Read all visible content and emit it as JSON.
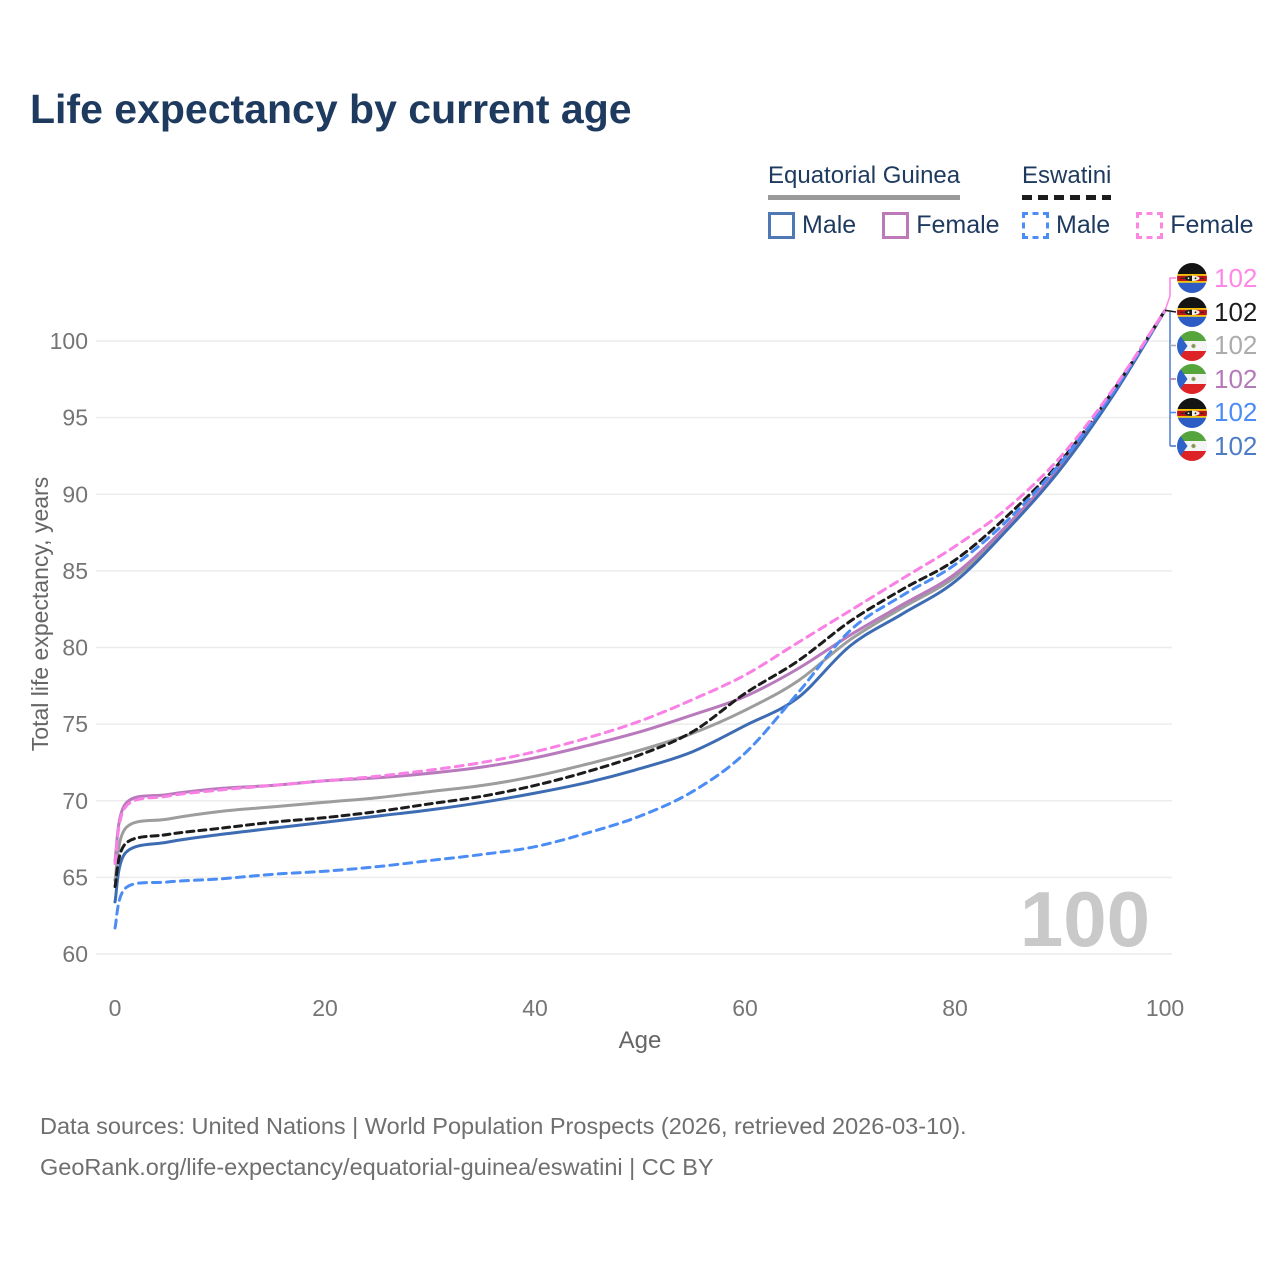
{
  "title": "Life expectancy by current age",
  "legend": {
    "groups": [
      {
        "label": "Equatorial Guinea",
        "line": {
          "color": "#9a9a9a",
          "dashed": false
        },
        "items": [
          {
            "label": "Male",
            "color": "#4e79b5",
            "dashed": false
          },
          {
            "label": "Female",
            "color": "#bd7ab8",
            "dashed": false
          }
        ]
      },
      {
        "label": "Eswatini",
        "line": {
          "color": "#1c1c1c",
          "dashed": true
        },
        "items": [
          {
            "label": "Male",
            "color": "#4b8df5",
            "dashed": true
          },
          {
            "label": "Female",
            "color": "#fb87e2",
            "dashed": true
          }
        ]
      }
    ]
  },
  "chart_data": {
    "type": "line",
    "title": "Life expectancy by current age",
    "xlabel": "Age",
    "ylabel": "Total life expectancy, years",
    "xlim": [
      0,
      100
    ],
    "ylim": [
      60,
      103
    ],
    "x_ticks": [
      0,
      20,
      40,
      60,
      80,
      100
    ],
    "y_ticks": [
      60,
      65,
      70,
      75,
      80,
      85,
      90,
      95,
      100
    ],
    "grid": "horizontal-only",
    "legend_position": "top-right",
    "x": [
      0,
      1,
      5,
      10,
      15,
      20,
      25,
      30,
      35,
      40,
      45,
      50,
      55,
      60,
      65,
      70,
      75,
      80,
      85,
      90,
      95,
      100
    ],
    "series": [
      {
        "name": "Equatorial Guinea — Both sexes",
        "country": "Equatorial Guinea",
        "sex": "Both",
        "color": "#9d9d9d",
        "dashed": false,
        "values": [
          64.8,
          68.2,
          68.8,
          69.3,
          69.6,
          69.9,
          70.2,
          70.6,
          71.0,
          71.6,
          72.4,
          73.3,
          74.4,
          75.9,
          77.8,
          80.5,
          82.6,
          84.6,
          87.8,
          91.7,
          96.4,
          102
        ]
      },
      {
        "name": "Equatorial Guinea — Female",
        "country": "Equatorial Guinea",
        "sex": "Female",
        "color": "#b87abc",
        "dashed": false,
        "values": [
          66.1,
          69.8,
          70.4,
          70.8,
          71.0,
          71.3,
          71.5,
          71.8,
          72.2,
          72.8,
          73.6,
          74.5,
          75.6,
          76.8,
          78.6,
          80.8,
          82.8,
          84.8,
          88.0,
          91.8,
          96.5,
          102
        ]
      },
      {
        "name": "Equatorial Guinea — Male",
        "country": "Equatorial Guinea",
        "sex": "Male",
        "color": "#3e6cb3",
        "dashed": false,
        "values": [
          63.4,
          66.6,
          67.3,
          67.8,
          68.2,
          68.6,
          69.0,
          69.4,
          69.9,
          70.5,
          71.2,
          72.1,
          73.2,
          74.9,
          76.7,
          80.1,
          82.2,
          84.3,
          87.7,
          91.6,
          96.4,
          102
        ]
      },
      {
        "name": "Eswatini — Both sexes",
        "country": "Eswatini",
        "sex": "Both",
        "color": "#1c1c1c",
        "dashed": true,
        "values": [
          64.4,
          67.2,
          67.8,
          68.2,
          68.6,
          68.9,
          69.3,
          69.8,
          70.3,
          71.0,
          71.9,
          73.0,
          74.5,
          77.0,
          79.1,
          81.7,
          83.8,
          85.7,
          88.6,
          92.1,
          96.7,
          102
        ]
      },
      {
        "name": "Eswatini — Male",
        "country": "Eswatini",
        "sex": "Male",
        "color": "#4b8df5",
        "dashed": true,
        "values": [
          61.7,
          64.3,
          64.7,
          64.9,
          65.2,
          65.4,
          65.7,
          66.1,
          66.5,
          67.0,
          67.9,
          69.0,
          70.6,
          73.1,
          77.0,
          81.1,
          83.4,
          85.4,
          88.3,
          92.0,
          96.6,
          102
        ]
      },
      {
        "name": "Eswatini — Female",
        "country": "Eswatini",
        "sex": "Female",
        "color": "#f980e4",
        "dashed": true,
        "values": [
          65.9,
          69.6,
          70.3,
          70.7,
          71.0,
          71.3,
          71.6,
          72.0,
          72.5,
          73.2,
          74.1,
          75.2,
          76.6,
          78.2,
          80.3,
          82.4,
          84.5,
          86.6,
          89.1,
          92.4,
          96.8,
          102
        ]
      }
    ],
    "end_labels": [
      {
        "flag": "eswatini",
        "value": "102",
        "color": "#ff87e6",
        "series": "Eswatini — Female"
      },
      {
        "flag": "eswatini",
        "value": "102",
        "color": "#1c1c1c",
        "series": "Eswatini — Both sexes"
      },
      {
        "flag": "equatorial-guinea",
        "value": "102",
        "color": "#acacac",
        "series": "Equatorial Guinea — Both sexes"
      },
      {
        "flag": "equatorial-guinea",
        "value": "102",
        "color": "#b57ab8",
        "series": "Equatorial Guinea — Female"
      },
      {
        "flag": "eswatini",
        "value": "102",
        "color": "#4b8df5",
        "series": "Eswatini — Male"
      },
      {
        "flag": "equatorial-guinea",
        "value": "102",
        "color": "#4e7cc4",
        "series": "Equatorial Guinea — Male"
      }
    ],
    "watermark": "100"
  },
  "theme": {
    "grid_color": "#ececec",
    "tick_color": "#757575",
    "axis_label_color": "#666666",
    "watermark_color": "#c9c9c9",
    "title_color": "#1e3a5f",
    "leader_blue": "#5b84d6"
  },
  "footer": {
    "line1": "Data sources: United Nations | World Population Prospects (2026, retrieved 2026-03-10).",
    "line2": "GeoRank.org/life-expectancy/equatorial-guinea/eswatini | CC BY"
  }
}
